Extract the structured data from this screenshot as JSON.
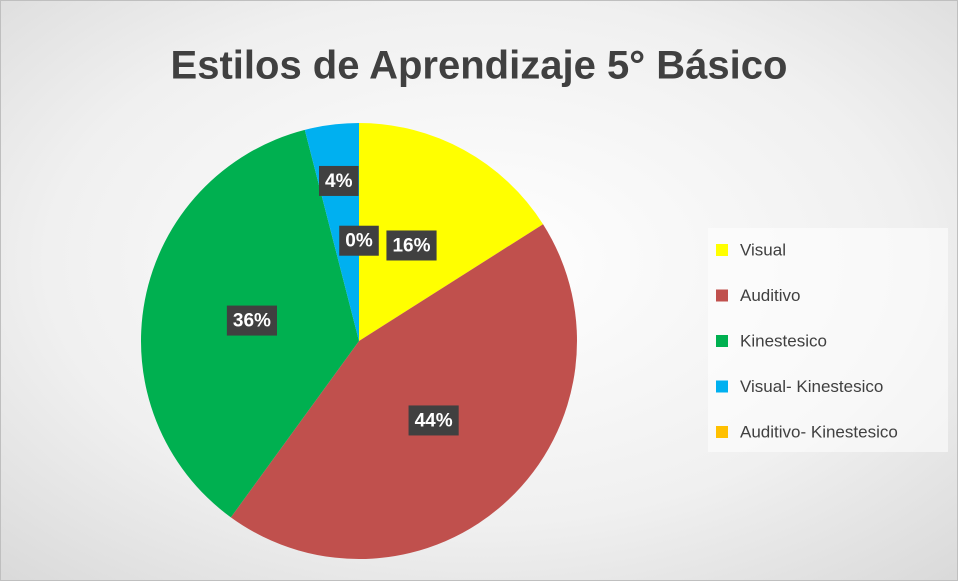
{
  "chart_data": {
    "type": "pie",
    "title": "Estilos de Aprendizaje 5° Básico",
    "categories": [
      "Visual",
      "Auditivo",
      "Kinestesico",
      "Visual- Kinestesico",
      "Auditivo- Kinestesico"
    ],
    "values": [
      16,
      44,
      36,
      4,
      0
    ],
    "value_labels": [
      "16%",
      "44%",
      "36%",
      "4%",
      "0%"
    ],
    "colors": [
      "#ffff00",
      "#c0504d",
      "#00b050",
      "#00b0f0",
      "#ffc000"
    ],
    "legend": "right"
  }
}
